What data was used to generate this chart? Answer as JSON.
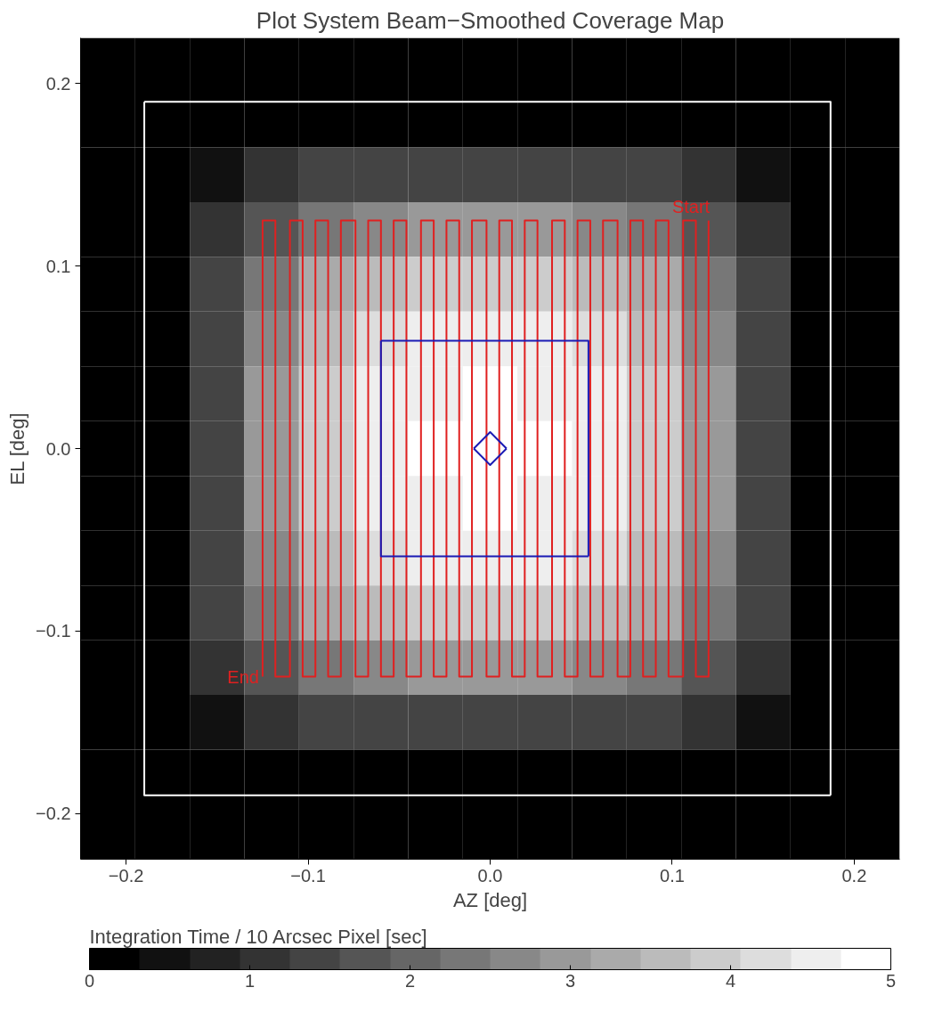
{
  "chart_data": {
    "type": "heatmap",
    "title": "Plot System Beam−Smoothed Coverage Map",
    "xlabel": "AZ [deg]",
    "ylabel": "EL [deg]",
    "clabel": "Integration Time / 10 Arcsec Pixel [sec]",
    "xlim": [
      -0.225,
      0.225
    ],
    "ylim": [
      -0.225,
      0.225
    ],
    "xticks": [
      {
        "value": -0.2,
        "label": "−0.2"
      },
      {
        "value": -0.1,
        "label": "−0.1"
      },
      {
        "value": 0,
        "label": "0.0"
      },
      0.1,
      0.2
    ],
    "yticks": [
      {
        "value": -0.2,
        "label": "−0.2"
      },
      {
        "value": -0.1,
        "label": "−0.1"
      },
      {
        "value": 0,
        "label": "0.0"
      },
      0.1,
      0.2
    ],
    "clim": [
      0,
      5
    ],
    "cticks": [
      0,
      1,
      2,
      3,
      4,
      5
    ],
    "x": [
      -0.21,
      -0.18,
      -0.15,
      -0.12,
      -0.09,
      -0.06,
      -0.03,
      0,
      0.03,
      0.06,
      0.09,
      0.12,
      0.15,
      0.18,
      0.21
    ],
    "y": [
      0.21,
      0.18,
      0.15,
      0.12,
      0.09,
      0.06,
      0.03,
      0,
      -0.03,
      -0.06,
      -0.09,
      -0.12,
      -0.15,
      -0.18,
      -0.21
    ],
    "cells": [
      [
        0,
        0,
        0,
        0,
        0,
        0,
        0,
        0,
        0,
        0,
        0,
        0,
        0,
        0,
        0
      ],
      [
        0,
        0,
        0,
        0,
        0,
        0,
        0,
        0,
        0,
        0,
        0,
        0,
        0,
        0,
        0
      ],
      [
        0,
        0,
        0.5,
        1.0,
        1.3,
        1.4,
        1.5,
        1.5,
        1.5,
        1.4,
        1.3,
        1.0,
        0.5,
        0,
        0
      ],
      [
        0,
        0,
        1.0,
        1.8,
        2.4,
        2.8,
        2.9,
        3.0,
        2.9,
        2.8,
        2.4,
        1.8,
        1.0,
        0,
        0
      ],
      [
        0,
        0,
        1.3,
        2.4,
        3.2,
        3.7,
        3.9,
        3.9,
        3.9,
        3.7,
        3.2,
        2.4,
        1.3,
        0,
        0
      ],
      [
        0,
        0,
        1.4,
        2.8,
        3.7,
        4.1,
        4.4,
        4.5,
        4.4,
        4.1,
        3.7,
        2.8,
        1.4,
        0,
        0
      ],
      [
        0,
        0,
        1.5,
        2.9,
        3.9,
        4.4,
        4.6,
        4.7,
        4.6,
        4.4,
        3.9,
        2.9,
        1.5,
        0,
        0
      ],
      [
        0,
        0,
        1.5,
        3.0,
        3.9,
        4.5,
        4.7,
        4.8,
        4.7,
        4.5,
        3.9,
        3.0,
        1.5,
        0,
        0
      ],
      [
        0,
        0,
        1.5,
        2.9,
        3.9,
        4.4,
        4.6,
        4.7,
        4.6,
        4.4,
        3.9,
        2.9,
        1.5,
        0,
        0
      ],
      [
        0,
        0,
        1.4,
        2.8,
        3.7,
        4.1,
        4.4,
        4.5,
        4.4,
        4.1,
        3.7,
        2.8,
        1.4,
        0,
        0
      ],
      [
        0,
        0,
        1.3,
        2.4,
        3.2,
        3.7,
        3.9,
        3.9,
        3.9,
        3.7,
        3.2,
        2.4,
        1.3,
        0,
        0
      ],
      [
        0,
        0,
        1.0,
        1.8,
        2.4,
        2.8,
        2.9,
        3.0,
        2.9,
        2.8,
        2.4,
        1.8,
        1.0,
        0,
        0
      ],
      [
        0,
        0,
        0.5,
        1.0,
        1.3,
        1.4,
        1.5,
        1.5,
        1.5,
        1.4,
        1.3,
        1.0,
        0.5,
        0,
        0
      ],
      [
        0,
        0,
        0,
        0,
        0,
        0,
        0,
        0,
        0,
        0,
        0,
        0,
        0,
        0,
        0
      ],
      [
        0,
        0,
        0,
        0,
        0,
        0,
        0,
        0,
        0,
        0,
        0,
        0,
        0,
        0,
        0
      ]
    ],
    "series": [
      {
        "type": "line",
        "color": "#ffffff",
        "x": [
          -0.19,
          0.187,
          0.187
        ],
        "values": [
          0.19,
          0.19,
          -0.19
        ]
      },
      {
        "type": "line",
        "color": "#ffffff",
        "x": [
          0.187,
          -0.19,
          -0.19
        ],
        "values": [
          -0.19,
          -0.19,
          0.19
        ]
      },
      {
        "type": "line",
        "color": "#e02020",
        "x": [
          0.12,
          0.12,
          0.113,
          0.113,
          0.106,
          0.106,
          0.098,
          0.098,
          0.091,
          0.091,
          0.084,
          0.084,
          0.077,
          0.077,
          0.07,
          0.07,
          0.062,
          0.062,
          0.055,
          0.055,
          0.048,
          0.048,
          0.041,
          0.041,
          0.034,
          0.034,
          0.026,
          0.026,
          0.019,
          0.019,
          0.012,
          0.012,
          0.005,
          0.005,
          -0.002,
          -0.002,
          -0.01,
          -0.01,
          -0.017,
          -0.017,
          -0.024,
          -0.024,
          -0.031,
          -0.031,
          -0.038,
          -0.038,
          -0.046,
          -0.046,
          -0.053,
          -0.053,
          -0.06,
          -0.06,
          -0.067,
          -0.067,
          -0.074,
          -0.074,
          -0.082,
          -0.082,
          -0.089,
          -0.089,
          -0.096,
          -0.096,
          -0.103,
          -0.103,
          -0.11,
          -0.11,
          -0.118,
          -0.118,
          -0.125,
          -0.125
        ],
        "values": [
          0.125,
          -0.125,
          -0.125,
          0.125,
          0.125,
          -0.125,
          -0.125,
          0.125,
          0.125,
          -0.125,
          -0.125,
          0.125,
          0.125,
          -0.125,
          -0.125,
          0.125,
          0.125,
          -0.125,
          -0.125,
          0.125,
          0.125,
          -0.125,
          -0.125,
          0.125,
          0.125,
          -0.125,
          -0.125,
          0.125,
          0.125,
          -0.125,
          -0.125,
          0.125,
          0.125,
          -0.125,
          -0.125,
          0.125,
          0.125,
          -0.125,
          -0.125,
          0.125,
          0.125,
          -0.125,
          -0.125,
          0.125,
          0.125,
          -0.125,
          -0.125,
          0.125,
          0.125,
          -0.125,
          -0.125,
          0.125,
          0.125,
          -0.125,
          -0.125,
          0.125,
          0.125,
          -0.125,
          -0.125,
          0.125,
          0.125,
          -0.125,
          -0.125,
          0.125,
          0.125,
          -0.125,
          -0.125,
          0.125,
          0.125,
          -0.125
        ]
      },
      {
        "type": "line",
        "color": "#1a1ab4",
        "x": [
          -0.06,
          0.054,
          0.054
        ],
        "values": [
          0.059,
          0.059,
          -0.059
        ]
      },
      {
        "type": "line",
        "color": "#1a1ab4",
        "x": [
          0.054,
          -0.06,
          -0.06
        ],
        "values": [
          -0.059,
          -0.059,
          0.059
        ]
      },
      {
        "type": "line",
        "color": "#1a1ab4",
        "x": [
          -0.009,
          0,
          0.009
        ],
        "values": [
          0,
          0.009,
          0
        ]
      },
      {
        "type": "line",
        "color": "#1a1ab4",
        "x": [
          -0.009,
          0,
          0.009
        ],
        "values": [
          0,
          -0.009,
          0
        ]
      }
    ],
    "annotations": [
      {
        "text": "Start",
        "x": 0.1,
        "y": 0.127
      },
      {
        "text": "End",
        "x": -0.125,
        "y": -0.125
      }
    ]
  }
}
